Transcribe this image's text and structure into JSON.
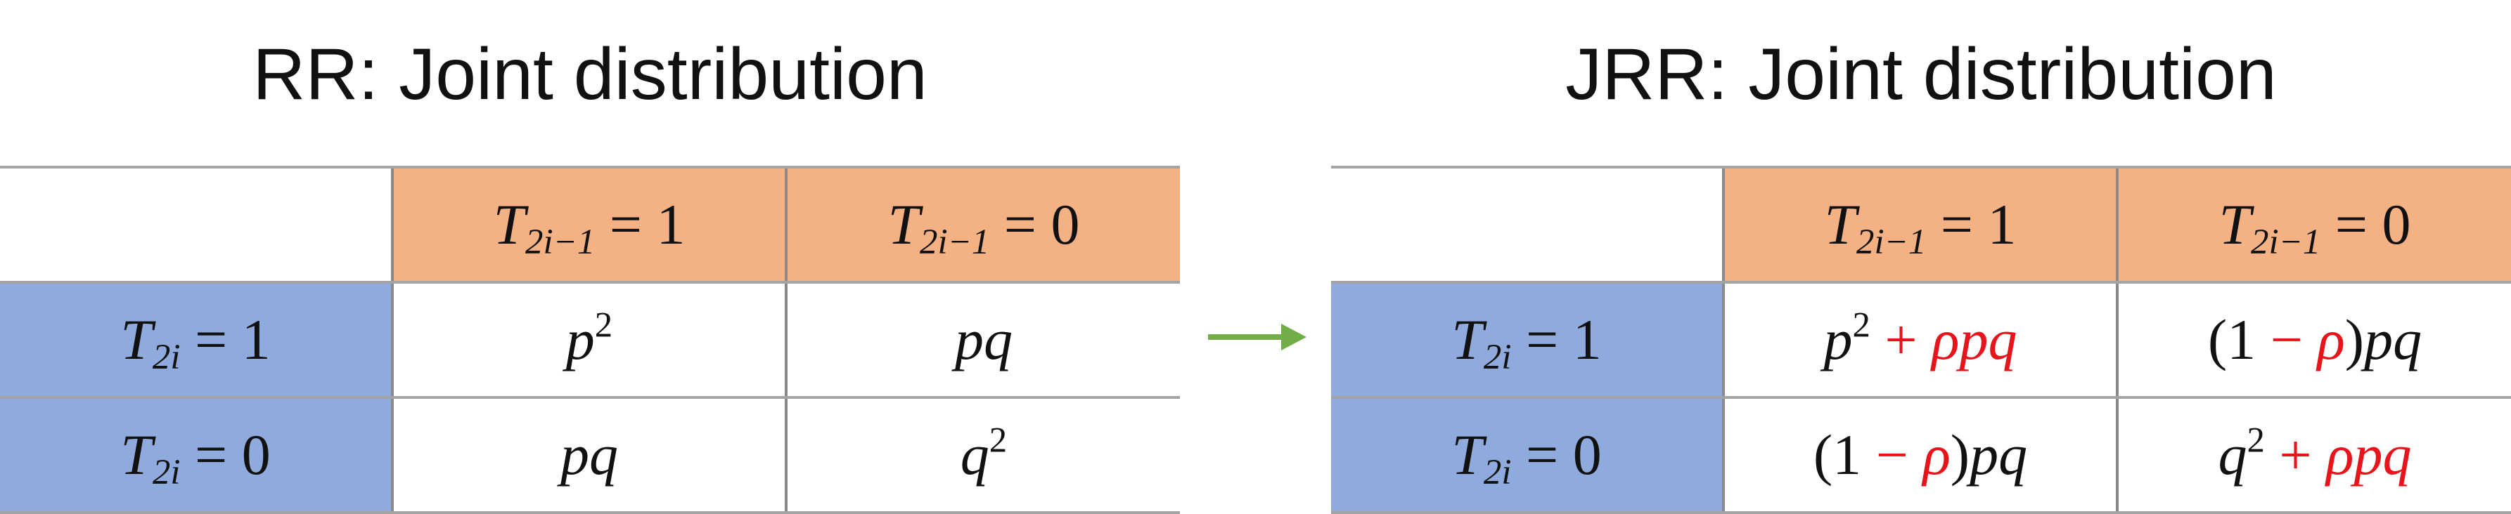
{
  "left_panel": {
    "title": "RR: Joint distribution",
    "col_headers": [
      "T2i−1 = 1",
      "T2i−1 = 0"
    ],
    "row_headers": [
      "T2i = 1",
      "T2i = 0"
    ],
    "cells": [
      [
        "p2",
        "pq"
      ],
      [
        "pq",
        "q2"
      ]
    ]
  },
  "right_panel": {
    "title": "JRR: Joint distribution",
    "col_headers": [
      "T2i−1 = 1",
      "T2i−1 = 0"
    ],
    "row_headers": [
      "T2i = 1",
      "T2i = 0"
    ],
    "cells": [
      [
        "p2 + ρpq",
        "(1 − ρ)pq"
      ],
      [
        "(1 − ρ)pq",
        "q2 + ρpq"
      ]
    ]
  },
  "colors": {
    "column_header_fill": "#f4b183",
    "row_header_fill": "#8faadc",
    "arrow": "#70ad47",
    "highlight_term": "#e8141b"
  },
  "icons": {
    "transition": "right-arrow-icon"
  }
}
